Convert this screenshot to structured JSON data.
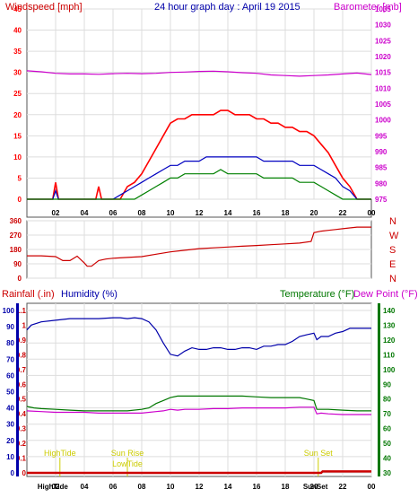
{
  "page": {
    "title": "24 hour graph day : April 19 2015"
  },
  "colors": {
    "wind": "#ff0000",
    "wind_avg": "#0000c0",
    "wind_lull": "#008000",
    "barometer": "#cc00cc",
    "direction": "#cc0000",
    "rain": "#cc0000",
    "humidity": "#0000aa",
    "temperature": "#007700",
    "dewpoint": "#cc00cc",
    "events": "#cccc00",
    "grid": "#dddddd",
    "frame": "#555555"
  },
  "chart_data": [
    {
      "type": "line",
      "id": "wind-barometer",
      "title": "24 hour graph day : April 19 2015",
      "left_axis_label": "Windspeed [mph]",
      "right_axis_label": "Barometer [mb]",
      "left_ticks": [
        "0",
        "5",
        "10",
        "15",
        "20",
        "25",
        "30",
        "35",
        "40",
        "45"
      ],
      "right_ticks": [
        "975",
        "980",
        "985",
        "990",
        "995",
        "1000",
        "1005",
        "1010",
        "1015",
        "1020",
        "1025",
        "1030",
        "1035"
      ],
      "x_ticks": [
        "02",
        "04",
        "06",
        "08",
        "10",
        "12",
        "14",
        "16",
        "18",
        "20",
        "22",
        "00"
      ],
      "ylim_left": [
        0,
        45
      ],
      "ylim_right": [
        975,
        1035
      ],
      "xlim": [
        0,
        24
      ],
      "grid": true,
      "series": [
        {
          "key": "gust",
          "axis": "left",
          "x": [
            0,
            1,
            1.8,
            2,
            2.2,
            3,
            4,
            4.8,
            5,
            5.2,
            6,
            6.5,
            7,
            7.5,
            8,
            8.5,
            9,
            9.5,
            10,
            10.5,
            11,
            11.5,
            12,
            12.5,
            13,
            13.5,
            14,
            14.5,
            15,
            15.5,
            16,
            16.5,
            17,
            17.5,
            18,
            18.5,
            19,
            19.5,
            20,
            20.5,
            21,
            21.5,
            22,
            22.5,
            23,
            24
          ],
          "y": [
            0,
            0,
            0,
            4,
            0,
            0,
            0,
            0,
            3,
            0,
            0,
            0,
            3,
            4,
            6,
            9,
            12,
            15,
            18,
            19,
            19,
            20,
            20,
            20,
            20,
            21,
            21,
            20,
            20,
            20,
            19,
            19,
            18,
            18,
            17,
            17,
            16,
            16,
            15,
            13,
            11,
            8,
            5,
            3,
            0,
            0
          ]
        },
        {
          "key": "average",
          "axis": "left",
          "x": [
            0,
            1,
            1.8,
            2,
            2.2,
            3,
            5,
            6,
            6.5,
            7,
            7.5,
            8,
            8.5,
            9,
            9.5,
            10,
            10.5,
            11,
            11.5,
            12,
            12.5,
            13,
            13.5,
            14,
            14.5,
            15,
            15.5,
            16,
            16.5,
            17,
            17.5,
            18,
            18.5,
            19,
            19.5,
            20,
            20.5,
            21,
            21.5,
            22,
            22.5,
            23,
            24
          ],
          "y": [
            0,
            0,
            0,
            2,
            0,
            0,
            0,
            0,
            1,
            2,
            3,
            4,
            5,
            6,
            7,
            8,
            8,
            9,
            9,
            9,
            10,
            10,
            10,
            10,
            10,
            10,
            10,
            10,
            9,
            9,
            9,
            9,
            9,
            8,
            8,
            8,
            7,
            6,
            5,
            3,
            2,
            0,
            0
          ]
        },
        {
          "key": "lull",
          "axis": "left",
          "x": [
            0,
            7,
            7.5,
            8,
            8.5,
            9,
            9.5,
            10,
            10.5,
            11,
            11.5,
            12,
            12.5,
            13,
            13.5,
            14,
            14.5,
            15,
            15.5,
            16,
            16.5,
            17,
            17.5,
            18,
            18.5,
            19,
            19.5,
            20,
            20.5,
            21,
            21.5,
            22,
            23,
            24
          ],
          "y": [
            0,
            0,
            0,
            1,
            2,
            3,
            4,
            5,
            5,
            6,
            6,
            6,
            6,
            6,
            7,
            6,
            6,
            6,
            6,
            6,
            5,
            5,
            5,
            5,
            5,
            4,
            4,
            4,
            3,
            2,
            1,
            0,
            0,
            0
          ]
        },
        {
          "key": "barometer",
          "axis": "right",
          "x": [
            0,
            1,
            2,
            3,
            4,
            5,
            6,
            7,
            8,
            9,
            10,
            11,
            12,
            13,
            14,
            15,
            16,
            17,
            18,
            19,
            20,
            21,
            22,
            23,
            24
          ],
          "y": [
            1015.5,
            1015.2,
            1014.7,
            1014.5,
            1014.5,
            1014.4,
            1014.6,
            1014.7,
            1014.6,
            1014.7,
            1015.0,
            1015.1,
            1015.3,
            1015.4,
            1015.2,
            1014.9,
            1014.7,
            1014.2,
            1014.0,
            1013.8,
            1014.0,
            1014.2,
            1014.5,
            1014.8,
            1014.3
          ]
        }
      ]
    },
    {
      "type": "line",
      "id": "wind-direction",
      "left_ticks": [
        "0",
        "90",
        "180",
        "270",
        "360"
      ],
      "right_ticks": [
        "N",
        "W",
        "S",
        "E",
        "N"
      ],
      "ylim": [
        0,
        360
      ],
      "xlim": [
        0,
        24
      ],
      "grid": true,
      "series": [
        {
          "key": "direction",
          "x": [
            0,
            1,
            2,
            2.5,
            3,
            3.5,
            4,
            4.2,
            4.5,
            5,
            5.5,
            6,
            7,
            8,
            9,
            10,
            11,
            12,
            13,
            14,
            15,
            16,
            17,
            18,
            19,
            19.8,
            20,
            20.5,
            21,
            21.5,
            22,
            23,
            24
          ],
          "y": [
            140,
            140,
            135,
            110,
            110,
            138,
            95,
            75,
            75,
            110,
            120,
            125,
            130,
            135,
            150,
            165,
            175,
            185,
            190,
            195,
            200,
            205,
            210,
            215,
            220,
            230,
            285,
            295,
            300,
            305,
            310,
            320,
            320
          ]
        }
      ]
    },
    {
      "type": "line",
      "id": "rain-humidity-temperature",
      "labels": {
        "rain": "Rainfall (.in)",
        "humidity": "Humidity (%)",
        "temperature": "Temperature (°F)",
        "dewpoint": "Dew Point (°F)"
      },
      "rain_ticks": [
        "0",
        "0.1",
        "0.2",
        "0.3",
        "0.4",
        "0.5",
        "0.6",
        "0.7",
        "0.8",
        "0.9",
        "1",
        "1.1"
      ],
      "humidity_ticks": [
        "0",
        "10",
        "20",
        "30",
        "40",
        "50",
        "60",
        "70",
        "80",
        "90",
        "100"
      ],
      "temp_ticks": [
        "30",
        "40",
        "50",
        "60",
        "70",
        "80",
        "90",
        "100",
        "110",
        "120",
        "130",
        "140"
      ],
      "x_ticks": [
        "02",
        "04",
        "06",
        "08",
        "10",
        "12",
        "14",
        "16",
        "18",
        "20",
        "22",
        "00"
      ],
      "ylim_humidity": [
        0,
        100
      ],
      "ylim_temp": [
        30,
        140
      ],
      "xlim": [
        0,
        24
      ],
      "grid": true,
      "series": [
        {
          "key": "humidity",
          "axis": "humidity",
          "x": [
            0,
            0.3,
            1,
            2,
            3,
            4,
            5,
            6,
            6.5,
            7,
            7.5,
            8,
            8.5,
            9,
            9.5,
            10,
            10.5,
            11,
            11.5,
            12,
            12.5,
            13,
            13.5,
            14,
            14.5,
            15,
            15.5,
            16,
            16.5,
            17,
            17.5,
            18,
            18.5,
            19,
            19.5,
            20,
            20.2,
            20.5,
            21,
            21.5,
            22,
            22.5,
            23,
            24
          ],
          "y": [
            88,
            91,
            93,
            94,
            95,
            95,
            95,
            95.5,
            95.5,
            95,
            95.5,
            95,
            93,
            88,
            80,
            73,
            72,
            75,
            77,
            76,
            76,
            77,
            77,
            76,
            76,
            77,
            77,
            76,
            78,
            78,
            79,
            79,
            81,
            84,
            85,
            86,
            82,
            84,
            84,
            86,
            87,
            89,
            89,
            89
          ]
        },
        {
          "key": "temperature",
          "axis": "temp",
          "x": [
            0,
            0.5,
            1,
            2,
            3,
            4,
            5,
            6,
            7,
            8,
            8.5,
            9,
            9.5,
            10,
            10.5,
            11,
            12,
            13,
            14,
            15,
            16,
            17,
            18,
            19,
            19.5,
            20,
            20.2,
            20.5,
            21,
            22,
            23,
            24
          ],
          "y": [
            75,
            74,
            73.5,
            73,
            72.5,
            72,
            72,
            72,
            72,
            73,
            74,
            77,
            79,
            81,
            82,
            82,
            82,
            82,
            82,
            82,
            81.5,
            81,
            81,
            81,
            80,
            79,
            73,
            73,
            73,
            72.5,
            72,
            72
          ]
        },
        {
          "key": "dewpoint",
          "axis": "temp",
          "x": [
            0,
            1,
            2,
            3,
            4,
            5,
            6,
            7,
            8,
            9,
            9.5,
            10,
            10.5,
            11,
            12,
            13,
            14,
            15,
            16,
            17,
            18,
            19,
            20,
            20.2,
            20.5,
            21,
            22,
            23,
            24
          ],
          "y": [
            72,
            71.5,
            71,
            71,
            71,
            70.5,
            70.5,
            70.5,
            70.5,
            71.5,
            72,
            73,
            72.5,
            73,
            73,
            73.5,
            73.5,
            74,
            74,
            74,
            74,
            74.5,
            74.5,
            70,
            70.5,
            70,
            69.5,
            69.5,
            69.5
          ]
        },
        {
          "key": "rain",
          "axis": "rain",
          "x": [
            0,
            20.5,
            20.6,
            24
          ],
          "y": [
            0,
            0,
            0.01,
            0.01
          ]
        }
      ],
      "events": [
        {
          "label": "HighTide",
          "x": 2.3,
          "row": 0
        },
        {
          "label": "Sun Rise",
          "x": 7.0,
          "row": 0
        },
        {
          "label": "LowTide",
          "x": 7.0,
          "row": 1
        },
        {
          "label": "Sun Set",
          "x": 20.3,
          "row": 0
        }
      ],
      "bottom_markers": [
        {
          "label": "HighTide",
          "x": 1.8
        },
        {
          "label": "SunSet",
          "x": 20.1
        }
      ]
    }
  ]
}
